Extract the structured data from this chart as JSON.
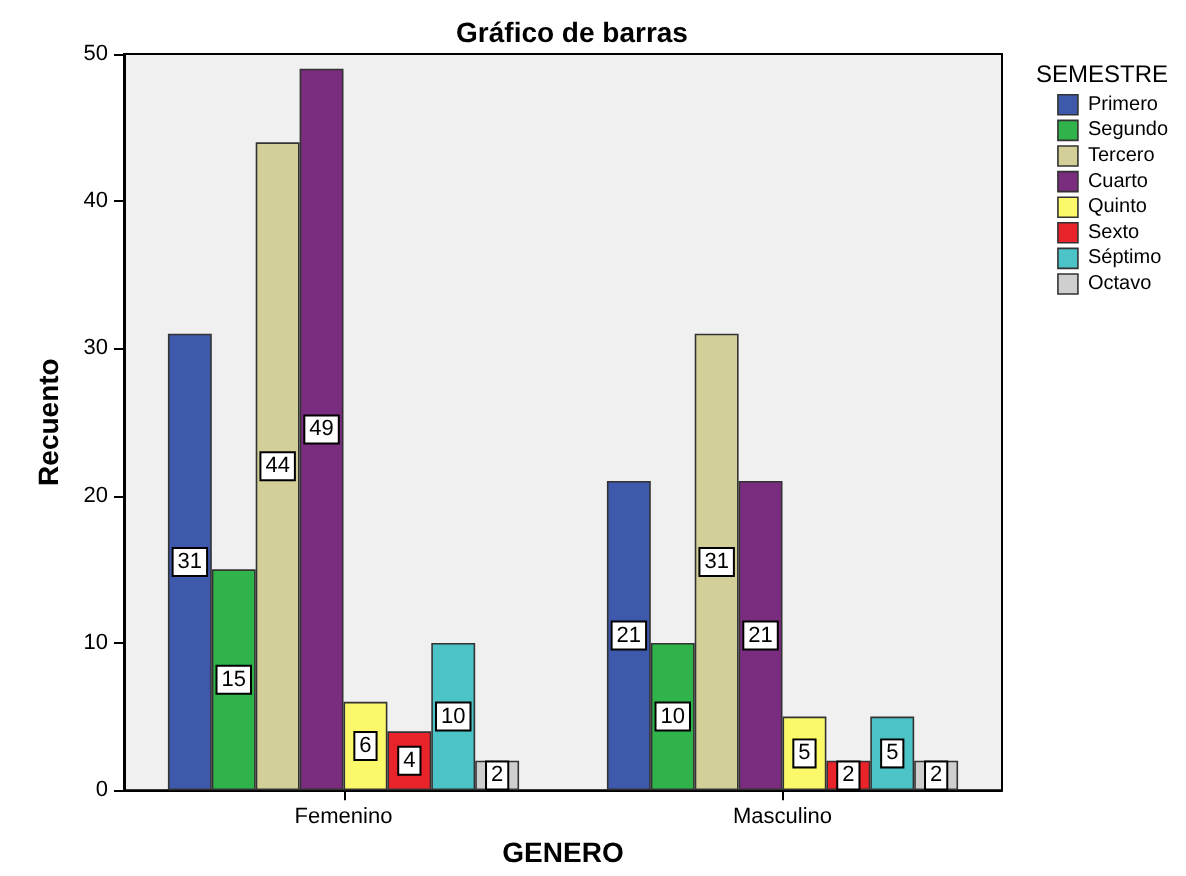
{
  "chart_data": {
    "type": "bar",
    "title": "Gráfico de barras",
    "xlabel": "GENERO",
    "ylabel": "Recuento",
    "legend_title": "SEMESTRE",
    "categories": [
      "Femenino",
      "Masculino"
    ],
    "series": [
      {
        "name": "Primero",
        "color": "#3e59ac",
        "values": [
          31,
          21
        ]
      },
      {
        "name": "Segundo",
        "color": "#2fb34a",
        "values": [
          15,
          10
        ]
      },
      {
        "name": "Tercero",
        "color": "#d3cf98",
        "values": [
          44,
          31
        ]
      },
      {
        "name": "Cuarto",
        "color": "#7a2c7f",
        "values": [
          49,
          21
        ]
      },
      {
        "name": "Quinto",
        "color": "#fbf86a",
        "values": [
          6,
          5
        ]
      },
      {
        "name": "Sexto",
        "color": "#e8232a",
        "values": [
          4,
          2
        ]
      },
      {
        "name": "Séptimo",
        "color": "#4bc3c7",
        "values": [
          10,
          5
        ]
      },
      {
        "name": "Octavo",
        "color": "#cfcfcf",
        "values": [
          2,
          2
        ]
      }
    ],
    "ylim": [
      0,
      50
    ],
    "yticks": [
      0,
      10,
      20,
      30,
      40,
      50
    ],
    "grid": false,
    "legend": "right",
    "data_labels": true
  }
}
